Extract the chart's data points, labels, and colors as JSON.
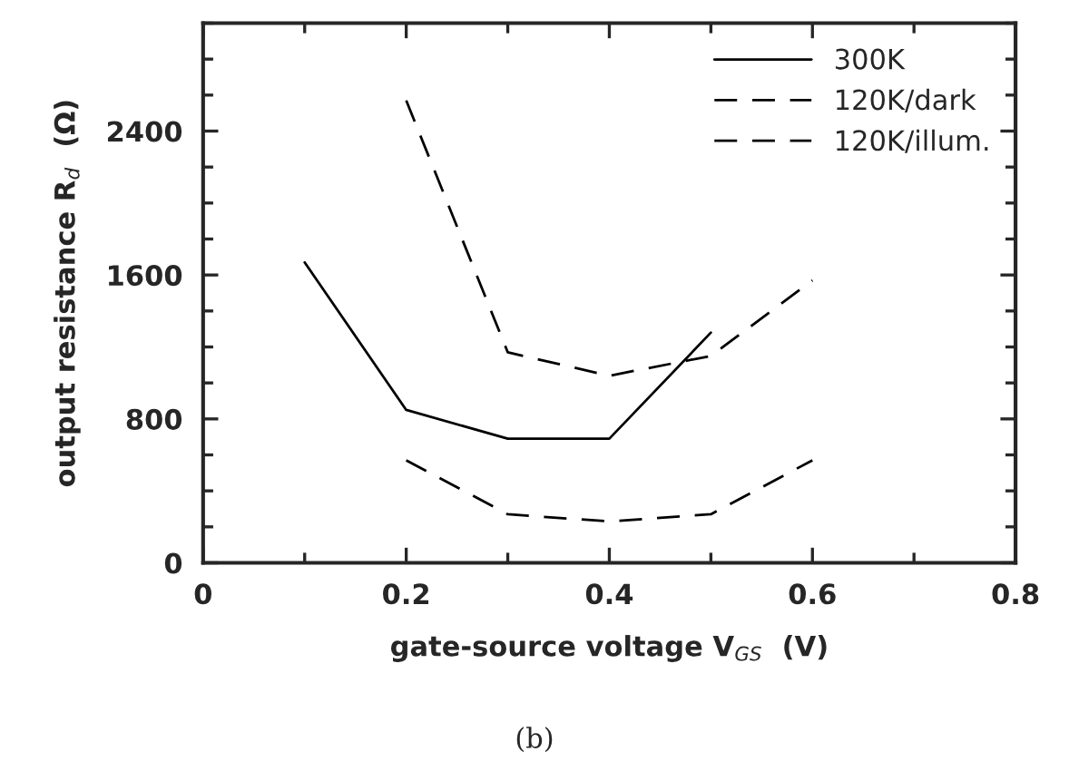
{
  "chart_data": {
    "type": "line",
    "xlabel": "gate-source voltage V$_{GS}$  (V)",
    "ylabel": "output resistance R$_{d}$  (Ω)",
    "annotations": [
      "(b)"
    ],
    "xlim": [
      0,
      0.8
    ],
    "xticks": [
      0,
      0.2,
      0.4,
      0.6,
      0.8
    ],
    "ylim": [
      0,
      3000
    ],
    "yticks": [
      0,
      800,
      1600,
      2400
    ],
    "grid": false,
    "legend": "top right",
    "marker": "none",
    "series": [
      {
        "name": "300K",
        "color": "#000000",
        "line_style": "solid",
        "x": [
          0.1,
          0.2,
          0.3,
          0.4,
          0.5
        ],
        "values": [
          1670,
          850,
          690,
          690,
          1280
        ]
      },
      {
        "name": "120K/dark",
        "color": "#000000",
        "line_style": "dashed",
        "x": [
          0.2,
          0.3,
          0.4,
          0.5,
          0.6
        ],
        "values": [
          2570,
          1170,
          1040,
          1150,
          1570
        ]
      },
      {
        "name": "120K/illum.",
        "color": "#000000",
        "line_style": "dashed",
        "x": [
          0.2,
          0.3,
          0.4,
          0.5,
          0.6
        ],
        "values": [
          570,
          270,
          230,
          270,
          570
        ]
      }
    ]
  }
}
